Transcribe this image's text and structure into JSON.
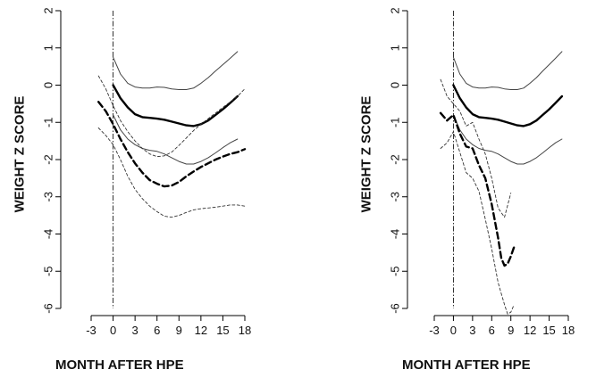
{
  "chart_data": [
    {
      "type": "line",
      "title": "",
      "xlabel": "MONTH AFTER HPE",
      "ylabel": "WEIGHT Z SCORE",
      "xlim": [
        -3,
        18
      ],
      "ylim": [
        -6,
        2
      ],
      "xticks": [
        "-3",
        "0",
        "3",
        "6",
        "9",
        "12",
        "15",
        "18"
      ],
      "yticks": [
        "2",
        "1",
        "0",
        "-1",
        "-2",
        "-3",
        "-4",
        "-5",
        "-6"
      ],
      "reference_line_x": 0,
      "grid": false,
      "series": [
        {
          "style": "thick-solid",
          "x": [
            0,
            1,
            2,
            3,
            4,
            5,
            6,
            7,
            8,
            9,
            10,
            11,
            12,
            13,
            14,
            15,
            16,
            17
          ],
          "y": [
            0.0,
            -0.35,
            -0.6,
            -0.78,
            -0.86,
            -0.88,
            -0.9,
            -0.93,
            -0.98,
            -1.03,
            -1.08,
            -1.1,
            -1.05,
            -0.95,
            -0.8,
            -0.65,
            -0.48,
            -0.3
          ]
        },
        {
          "style": "thin-solid-upper",
          "x": [
            0,
            1,
            2,
            3,
            4,
            5,
            6,
            7,
            8,
            9,
            10,
            11,
            12,
            13,
            14,
            15,
            16,
            17
          ],
          "y": [
            0.75,
            0.3,
            0.05,
            -0.05,
            -0.08,
            -0.08,
            -0.05,
            -0.06,
            -0.1,
            -0.12,
            -0.12,
            -0.08,
            0.05,
            0.2,
            0.38,
            0.55,
            0.72,
            0.9
          ]
        },
        {
          "style": "thin-solid-lower",
          "x": [
            0,
            1,
            2,
            3,
            4,
            5,
            6,
            7,
            8,
            9,
            10,
            11,
            12,
            13,
            14,
            15,
            16,
            17
          ],
          "y": [
            -0.8,
            -1.2,
            -1.45,
            -1.6,
            -1.7,
            -1.75,
            -1.78,
            -1.85,
            -1.95,
            -2.05,
            -2.12,
            -2.12,
            -2.05,
            -1.95,
            -1.82,
            -1.68,
            -1.55,
            -1.45
          ]
        },
        {
          "style": "thick-dashed",
          "x": [
            -2,
            -1,
            0,
            1,
            2,
            3,
            4,
            5,
            6,
            7,
            8,
            9,
            10,
            11,
            12,
            13,
            14,
            15,
            16,
            17,
            18
          ],
          "y": [
            -0.45,
            -0.7,
            -1.05,
            -1.45,
            -1.8,
            -2.1,
            -2.35,
            -2.55,
            -2.65,
            -2.72,
            -2.7,
            -2.6,
            -2.45,
            -2.32,
            -2.2,
            -2.1,
            -2.0,
            -1.92,
            -1.85,
            -1.8,
            -1.72
          ]
        },
        {
          "style": "thin-dashed-upper",
          "x": [
            -2,
            -1,
            0,
            1,
            2,
            3,
            4,
            5,
            6,
            7,
            8,
            9,
            10,
            11,
            12,
            13,
            14,
            15,
            16,
            17,
            18
          ],
          "y": [
            0.25,
            -0.1,
            -0.55,
            -0.95,
            -1.25,
            -1.5,
            -1.7,
            -1.85,
            -1.92,
            -1.9,
            -1.8,
            -1.62,
            -1.42,
            -1.22,
            -1.05,
            -0.9,
            -0.75,
            -0.6,
            -0.45,
            -0.3,
            -0.1
          ]
        },
        {
          "style": "thin-dashed-lower",
          "x": [
            -2,
            -1,
            0,
            1,
            2,
            3,
            4,
            5,
            6,
            7,
            8,
            9,
            10,
            11,
            12,
            13,
            14,
            15,
            16,
            17,
            18
          ],
          "y": [
            -1.15,
            -1.35,
            -1.6,
            -2.0,
            -2.45,
            -2.8,
            -3.05,
            -3.25,
            -3.4,
            -3.52,
            -3.55,
            -3.5,
            -3.42,
            -3.35,
            -3.32,
            -3.3,
            -3.28,
            -3.25,
            -3.22,
            -3.22,
            -3.25
          ]
        }
      ]
    },
    {
      "type": "line",
      "title": "",
      "xlabel": "MONTH AFTER HPE",
      "ylabel": "WEIGHT Z SCORE",
      "xlim": [
        -3,
        18
      ],
      "ylim": [
        -6,
        2
      ],
      "xticks": [
        "-3",
        "0",
        "3",
        "6",
        "9",
        "12",
        "15",
        "18"
      ],
      "yticks": [
        "2",
        "1",
        "0",
        "-1",
        "-2",
        "-3",
        "-4",
        "-5",
        "-6"
      ],
      "reference_line_x": 0,
      "grid": false,
      "series": [
        {
          "style": "thick-solid",
          "x": [
            0,
            1,
            2,
            3,
            4,
            5,
            6,
            7,
            8,
            9,
            10,
            11,
            12,
            13,
            14,
            15,
            16,
            17
          ],
          "y": [
            0.0,
            -0.35,
            -0.6,
            -0.78,
            -0.86,
            -0.88,
            -0.9,
            -0.93,
            -0.98,
            -1.03,
            -1.08,
            -1.1,
            -1.05,
            -0.95,
            -0.8,
            -0.65,
            -0.48,
            -0.3
          ]
        },
        {
          "style": "thin-solid-upper",
          "x": [
            0,
            1,
            2,
            3,
            4,
            5,
            6,
            7,
            8,
            9,
            10,
            11,
            12,
            13,
            14,
            15,
            16,
            17
          ],
          "y": [
            0.75,
            0.3,
            0.05,
            -0.05,
            -0.08,
            -0.08,
            -0.05,
            -0.06,
            -0.1,
            -0.12,
            -0.12,
            -0.08,
            0.05,
            0.2,
            0.38,
            0.55,
            0.72,
            0.9
          ]
        },
        {
          "style": "thin-solid-lower",
          "x": [
            0,
            1,
            2,
            3,
            4,
            5,
            6,
            7,
            8,
            9,
            10,
            11,
            12,
            13,
            14,
            15,
            16,
            17
          ],
          "y": [
            -0.8,
            -1.2,
            -1.45,
            -1.6,
            -1.7,
            -1.75,
            -1.78,
            -1.85,
            -1.95,
            -2.05,
            -2.12,
            -2.12,
            -2.05,
            -1.95,
            -1.82,
            -1.68,
            -1.55,
            -1.45
          ]
        },
        {
          "style": "thick-dashed",
          "x": [
            -2,
            -1,
            0,
            1,
            2,
            3,
            4,
            5,
            6,
            7,
            7.5,
            8,
            8.5,
            9,
            9.5
          ],
          "y": [
            -0.75,
            -0.95,
            -0.8,
            -1.3,
            -1.65,
            -1.7,
            -2.15,
            -2.5,
            -3.2,
            -4.1,
            -4.65,
            -4.85,
            -4.8,
            -4.6,
            -4.35
          ]
        },
        {
          "style": "thin-dashed-upper",
          "x": [
            -2,
            -1,
            0,
            1,
            2,
            3,
            4,
            5,
            6,
            7,
            8,
            9
          ],
          "y": [
            0.15,
            -0.3,
            -0.5,
            -0.7,
            -1.1,
            -1.0,
            -1.45,
            -1.85,
            -2.5,
            -3.3,
            -3.55,
            -2.9
          ]
        },
        {
          "style": "thin-dashed-lower",
          "x": [
            -2,
            -1,
            0,
            1,
            2,
            3,
            4,
            5,
            6,
            7,
            8,
            8.5,
            9,
            9.5
          ],
          "y": [
            -1.7,
            -1.55,
            -1.25,
            -1.8,
            -2.35,
            -2.5,
            -2.85,
            -3.6,
            -4.4,
            -5.3,
            -5.9,
            -6.15,
            -6.1,
            -5.9
          ]
        }
      ]
    }
  ]
}
